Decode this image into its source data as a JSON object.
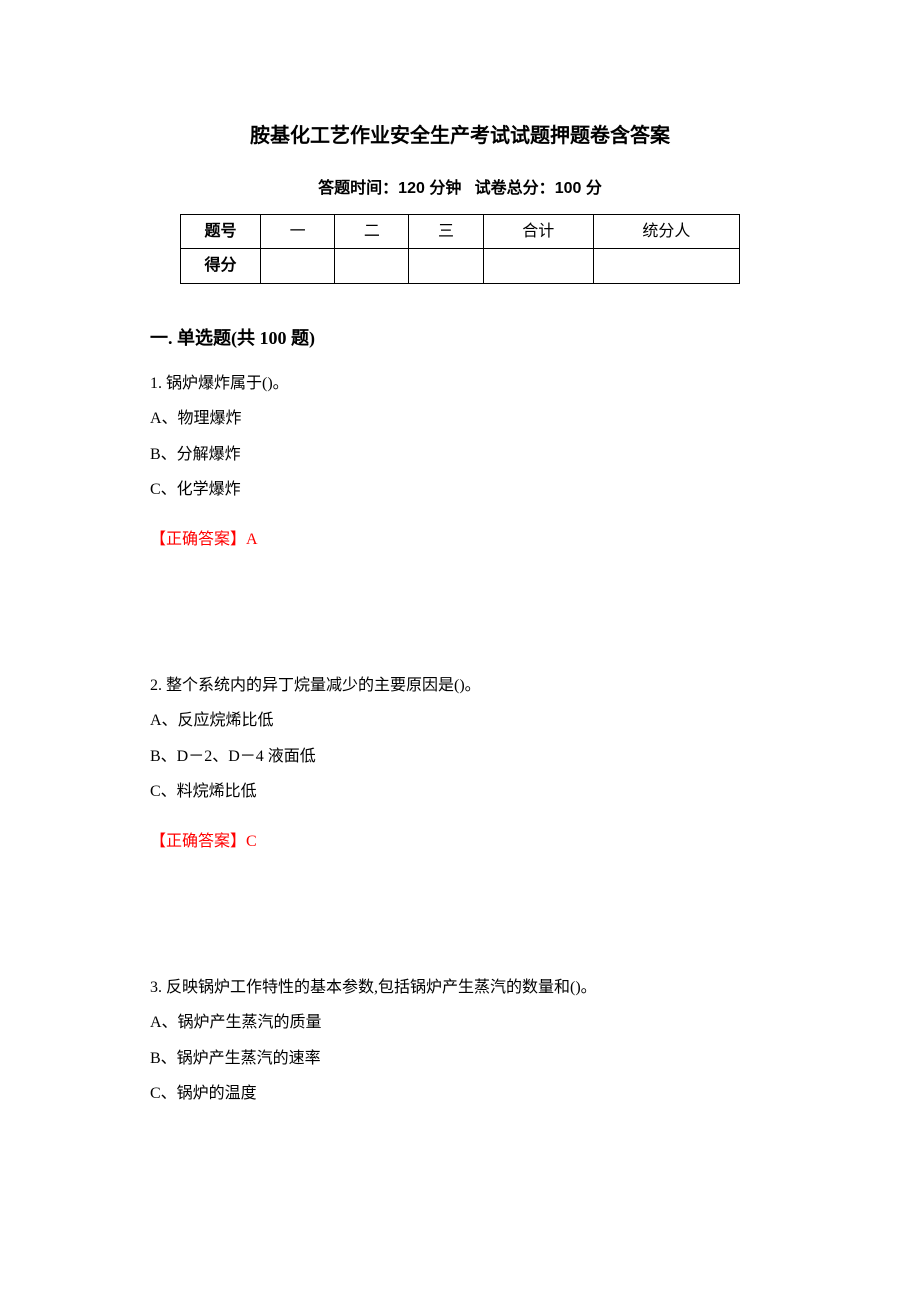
{
  "title": "胺基化工艺作业安全生产考试试题押题卷含答案",
  "subtitle_time_label": "答题时间：",
  "subtitle_time_value": "120 分钟",
  "subtitle_score_label": "试卷总分：",
  "subtitle_score_value": "100 分",
  "table": {
    "header": [
      "题号",
      "一",
      "二",
      "三",
      "合计",
      "统分人"
    ],
    "row2_label": "得分"
  },
  "section": "一. 单选题(共 100 题)",
  "questions": [
    {
      "stem": "1. 锅炉爆炸属于()。",
      "options": [
        "A、物理爆炸",
        "B、分解爆炸",
        "C、化学爆炸"
      ],
      "answer_label": "【正确答案】",
      "answer": "A"
    },
    {
      "stem": "2. 整个系统内的异丁烷量减少的主要原因是()。",
      "options": [
        "A、反应烷烯比低",
        "B、D－2、D－4 液面低",
        "C、料烷烯比低"
      ],
      "answer_label": "【正确答案】",
      "answer": "C"
    },
    {
      "stem": "3. 反映锅炉工作特性的基本参数,包括锅炉产生蒸汽的数量和()。",
      "options": [
        "A、锅炉产生蒸汽的质量",
        "B、锅炉产生蒸汽的速率",
        "C、锅炉的温度"
      ],
      "answer_label": "",
      "answer": ""
    }
  ],
  "colors": {
    "text": "#000000",
    "answer": "#ff0000",
    "background": "#ffffff",
    "border": "#000000"
  }
}
